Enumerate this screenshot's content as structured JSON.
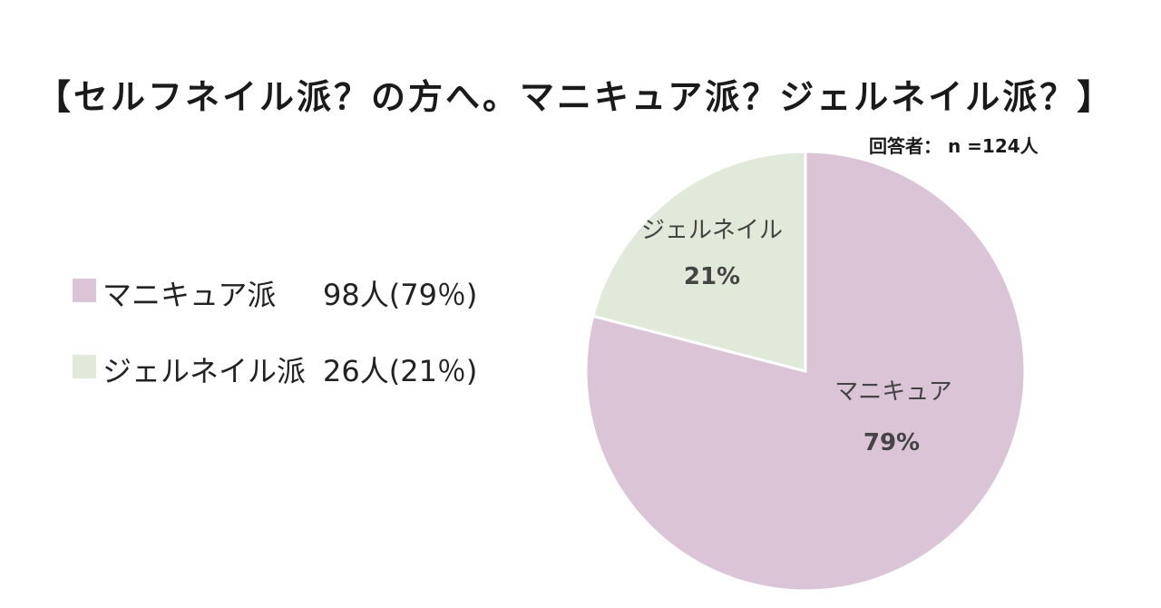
{
  "chart_data": {
    "type": "pie",
    "title": "【セルフネイル派？の方へ。マニキュア派？ジェルネイル派？】",
    "respondents_note": "回答者： n =124人",
    "slices": [
      {
        "legend_label": "マニキュア派",
        "legend_value": "98人(79％)",
        "slice_label": "マニキュア",
        "slice_percent_label": "79%",
        "count": 98,
        "percent": 79,
        "color": "#dac4d6"
      },
      {
        "legend_label": "ジェルネイル派",
        "legend_value": "26人(21％)",
        "slice_label": "ジェルネイル",
        "slice_percent_label": "21%",
        "count": 26,
        "percent": 21,
        "color": "#e0e9da"
      }
    ],
    "start_angle": "12 o'clock",
    "direction": "clockwise",
    "legend_position": "left"
  }
}
